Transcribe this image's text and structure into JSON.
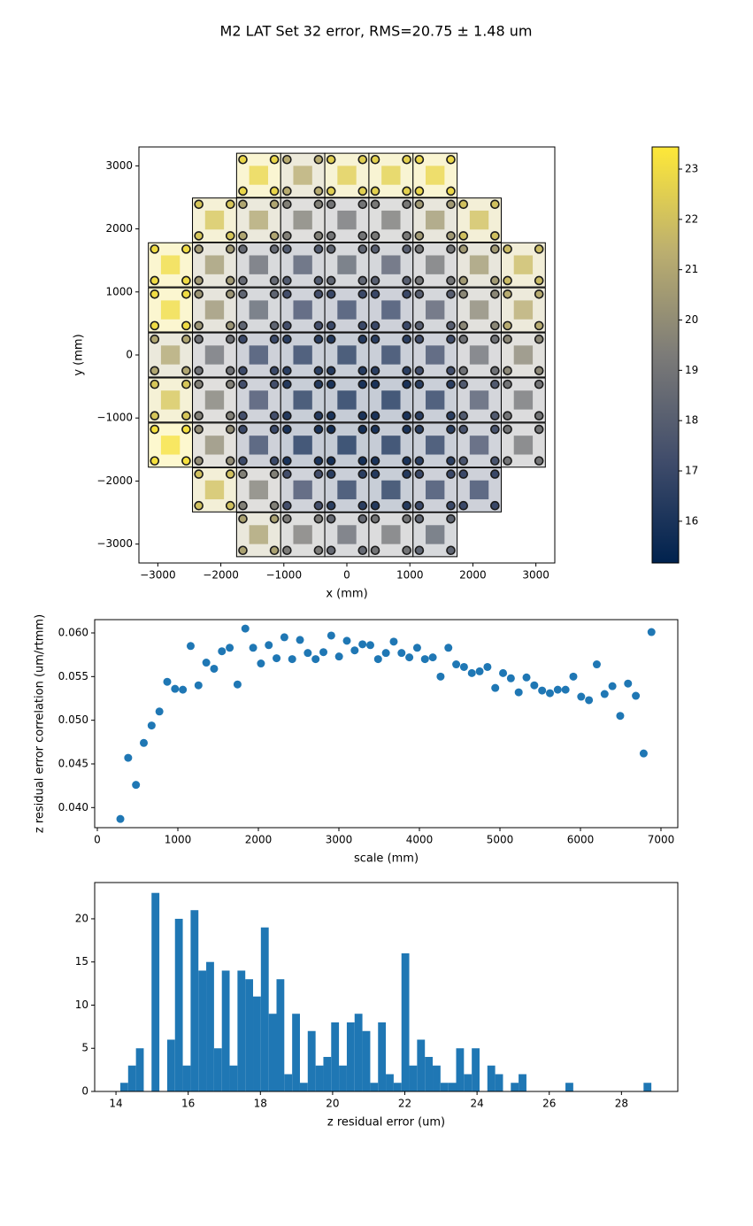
{
  "title": "M2 LAT Set 32 error, RMS=20.75 ± 1.48 um",
  "chart_data": [
    {
      "type": "panel-map",
      "xlabel": "x (mm)",
      "ylabel": "y (mm)",
      "xlim": [
        -3300,
        3300
      ],
      "ylim": [
        -3300,
        3300
      ],
      "xticks": [
        {
          "value": -3000,
          "label": "−3000"
        },
        {
          "value": -2000,
          "label": "−2000"
        },
        {
          "value": -1000,
          "label": "−1000"
        },
        0,
        1000,
        2000,
        3000
      ],
      "yticks": [
        {
          "value": -3000,
          "label": "−3000"
        },
        {
          "value": -2000,
          "label": "−2000"
        },
        {
          "value": -1000,
          "label": "−1000"
        },
        0,
        1000,
        2000,
        3000
      ],
      "colormap": [
        "#00224e",
        "#414d6b",
        "#7c7b78",
        "#bcaf6f",
        "#fee838"
      ],
      "clim": [
        15.17,
        23.44
      ],
      "cticks": [
        16,
        17,
        18,
        19,
        20,
        21,
        22,
        23
      ],
      "x": [
        -1400,
        -700,
        0,
        700,
        1400,
        -2100,
        -1400,
        -700,
        0,
        700,
        1400,
        2100,
        -2800,
        -2100,
        -1400,
        -700,
        0,
        700,
        1400,
        2100,
        2800,
        -2800,
        -2100,
        -1400,
        -700,
        0,
        700,
        1400,
        2100,
        2800,
        -2800,
        -2100,
        -1400,
        -700,
        0,
        700,
        1400,
        2100,
        2800,
        -2800,
        -2100,
        -1400,
        -700,
        0,
        700,
        1400,
        2100,
        2800,
        -2800,
        -2100,
        -1400,
        -700,
        0,
        700,
        1400,
        2100,
        2800,
        -2100,
        -1400,
        -700,
        0,
        700,
        1400,
        2100,
        -1400,
        -700,
        0,
        700,
        1400
      ],
      "y": [
        2850,
        2850,
        2850,
        2850,
        2850,
        2140,
        2140,
        2140,
        2140,
        2140,
        2140,
        2140,
        1430,
        1430,
        1430,
        1430,
        1430,
        1430,
        1430,
        1430,
        1430,
        715,
        715,
        715,
        715,
        715,
        715,
        715,
        715,
        715,
        0,
        0,
        0,
        0,
        0,
        0,
        0,
        0,
        0,
        -715,
        -715,
        -715,
        -715,
        -715,
        -715,
        -715,
        -715,
        -715,
        -1430,
        -1430,
        -1430,
        -1430,
        -1430,
        -1430,
        -1430,
        -1430,
        -1430,
        -2140,
        -2140,
        -2140,
        -2140,
        -2140,
        -2140,
        -2140,
        -2850,
        -2850,
        -2850,
        -2850,
        -2850
      ],
      "values": [
        22.8,
        21.2,
        22.5,
        22.6,
        22.8,
        22.2,
        21.0,
        19.5,
        19.0,
        19.2,
        20.5,
        22.0,
        23.0,
        20.5,
        18.5,
        17.8,
        18.3,
        18.0,
        19.0,
        20.5,
        21.8,
        23.0,
        20.3,
        18.3,
        17.3,
        17.0,
        17.0,
        18.0,
        19.8,
        21.2,
        21.0,
        18.8,
        17.0,
        16.5,
        16.3,
        16.5,
        17.2,
        18.8,
        19.8,
        22.2,
        19.5,
        17.3,
        16.3,
        16.0,
        16.0,
        16.5,
        17.8,
        19.0,
        23.2,
        20.0,
        17.0,
        16.0,
        15.8,
        16.0,
        16.5,
        17.5,
        19.0,
        22.0,
        19.5,
        17.3,
        16.5,
        16.3,
        17.0,
        17.0,
        20.8,
        19.3,
        18.5,
        19.0,
        18.3
      ]
    },
    {
      "type": "scatter",
      "xlabel": "scale (mm)",
      "ylabel": "z residual error correlation (um/rtmm)",
      "color": "#1f77b4",
      "xlim": [
        -33,
        7209
      ],
      "ylim": [
        0.0377,
        0.06152
      ],
      "xticks": [
        0,
        1000,
        2000,
        3000,
        4000,
        5000,
        6000,
        7000
      ],
      "yticks": [
        {
          "value": 0.04,
          "label": "0.040"
        },
        0.045,
        {
          "value": 0.05,
          "label": "0.050"
        },
        0.055,
        {
          "value": 0.06,
          "label": "0.060"
        }
      ],
      "x": [
        286,
        383,
        480,
        577,
        674,
        771,
        868,
        965,
        1062,
        1159,
        1256,
        1353,
        1450,
        1547,
        1644,
        1741,
        1838,
        1935,
        2032,
        2129,
        2226,
        2323,
        2420,
        2517,
        2614,
        2711,
        2808,
        2905,
        3002,
        3099,
        3196,
        3293,
        3390,
        3487,
        3584,
        3681,
        3778,
        3875,
        3972,
        4069,
        4166,
        4263,
        4360,
        4457,
        4554,
        4651,
        4748,
        4845,
        4942,
        5039,
        5136,
        5233,
        5330,
        5427,
        5524,
        5621,
        5718,
        5815,
        5912,
        6009,
        6106,
        6203,
        6300,
        6397,
        6494,
        6591,
        6688,
        6785,
        6882
      ],
      "values": [
        0.0387,
        0.0457,
        0.0426,
        0.0474,
        0.0494,
        0.051,
        0.0544,
        0.0536,
        0.0535,
        0.0585,
        0.054,
        0.0566,
        0.0559,
        0.0579,
        0.0583,
        0.0541,
        0.0605,
        0.0583,
        0.0565,
        0.0586,
        0.0571,
        0.0595,
        0.057,
        0.0592,
        0.0577,
        0.057,
        0.0578,
        0.0597,
        0.0573,
        0.0591,
        0.058,
        0.0587,
        0.0586,
        0.057,
        0.0577,
        0.059,
        0.0577,
        0.0572,
        0.0583,
        0.057,
        0.0572,
        0.055,
        0.0583,
        0.0564,
        0.0561,
        0.0554,
        0.0556,
        0.0561,
        0.0537,
        0.0554,
        0.0548,
        0.0532,
        0.0549,
        0.054,
        0.0534,
        0.0531,
        0.0535,
        0.0535,
        0.055,
        0.0527,
        0.0523,
        0.0564,
        0.053,
        0.0539,
        0.0505,
        0.0542,
        0.0528,
        0.0462,
        0.0601
      ]
    },
    {
      "type": "histogram",
      "xlabel": "z residual error (um)",
      "color": "#1f77b4",
      "xlim": [
        13.41,
        29.56
      ],
      "ylim": [
        0,
        24.2
      ],
      "xticks": [
        14,
        16,
        18,
        20,
        22,
        24,
        26,
        28
      ],
      "yticks": [
        0,
        5,
        10,
        15,
        20
      ],
      "bins": [
        14.12,
        14.336,
        14.553,
        14.769,
        14.985,
        15.202,
        15.418,
        15.634,
        15.85,
        16.067,
        16.283,
        16.499,
        16.716,
        16.932,
        17.148,
        17.365,
        17.581,
        17.797,
        18.013,
        18.23,
        18.446,
        18.662,
        18.879,
        19.095,
        19.311,
        19.528,
        19.744,
        19.96,
        20.176,
        20.393,
        20.609,
        20.825,
        21.042,
        21.258,
        21.474,
        21.691,
        21.907,
        22.123,
        22.339,
        22.556,
        22.772,
        22.988,
        23.205,
        23.421,
        23.637,
        23.854,
        24.07,
        24.286,
        24.502,
        24.719,
        24.935,
        25.151,
        25.368,
        25.584,
        25.8,
        26.017,
        26.233,
        26.449,
        26.665,
        26.882,
        27.098,
        27.314,
        27.531,
        27.747,
        27.963,
        28.18,
        28.396,
        28.612,
        28.828
      ],
      "values": [
        1,
        3,
        5,
        0,
        23,
        0,
        6,
        20,
        3,
        21,
        14,
        15,
        5,
        14,
        3,
        14,
        13,
        11,
        19,
        9,
        13,
        2,
        9,
        1,
        7,
        3,
        4,
        8,
        3,
        8,
        9,
        7,
        1,
        8,
        2,
        1,
        16,
        3,
        6,
        4,
        3,
        1,
        1,
        5,
        2,
        5,
        0,
        3,
        2,
        0,
        1,
        2,
        0,
        0,
        0,
        0,
        0,
        1,
        0,
        0,
        0,
        0,
        0,
        0,
        0,
        0,
        0,
        1
      ]
    }
  ]
}
